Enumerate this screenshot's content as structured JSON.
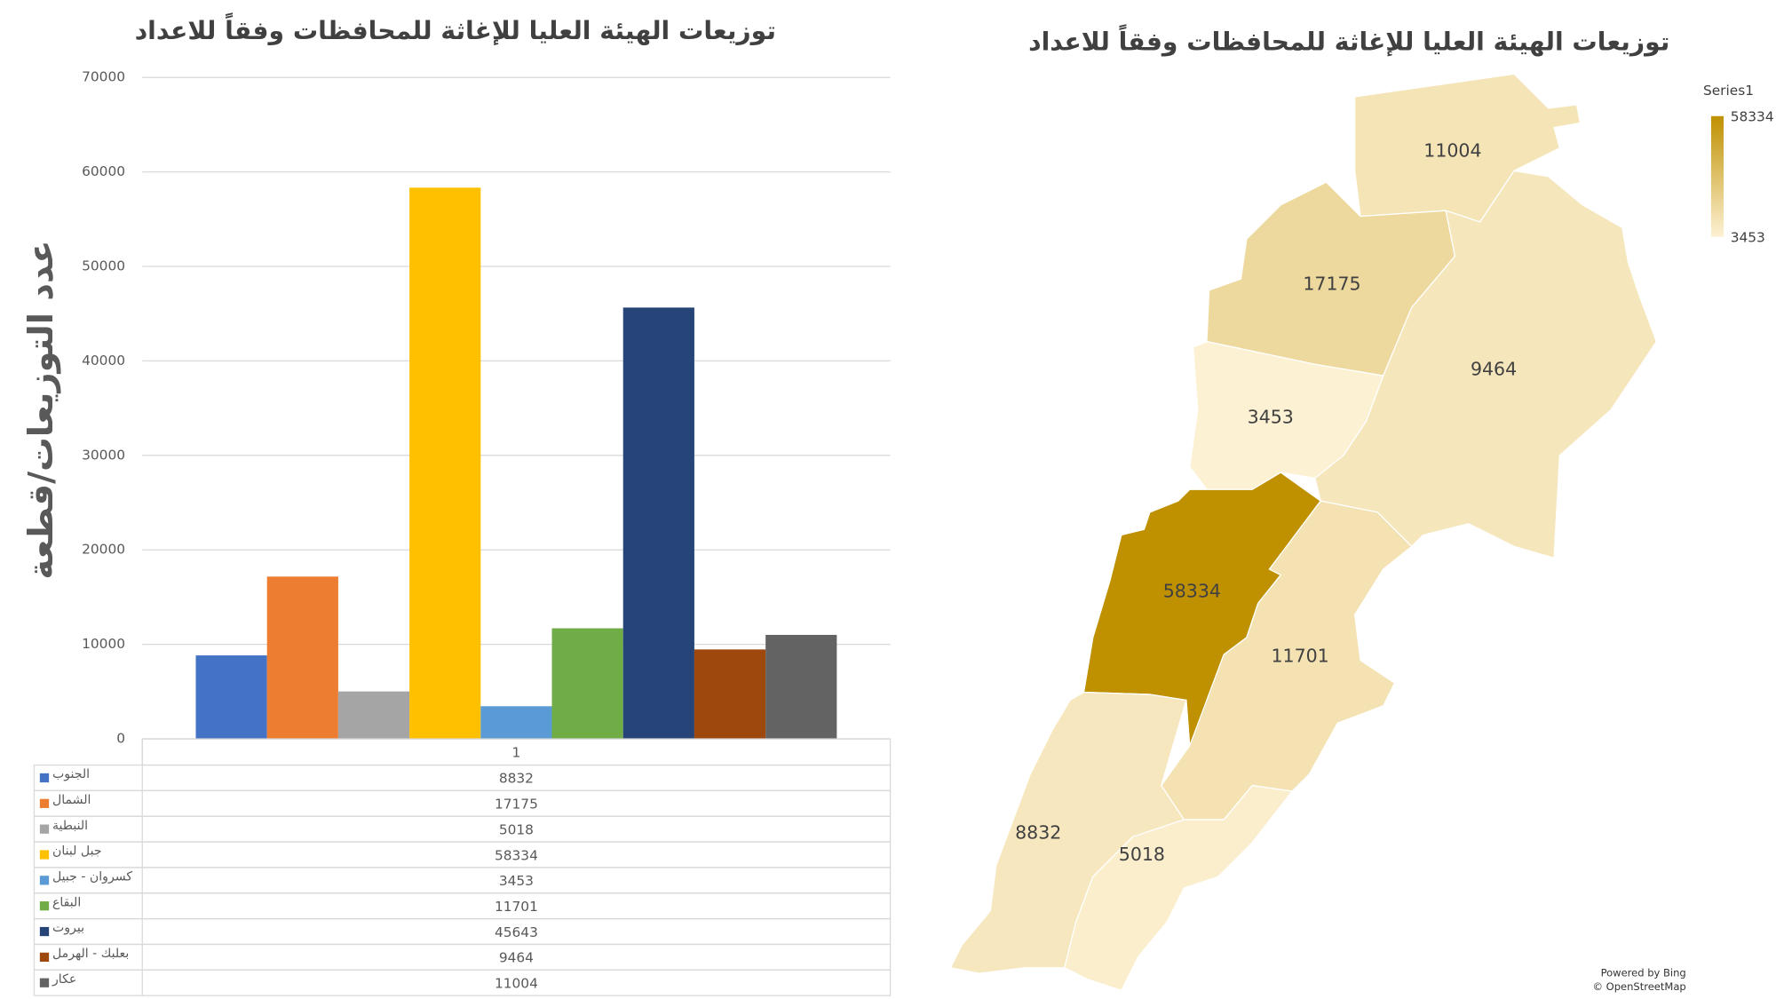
{
  "chart_data": [
    {
      "type": "bar",
      "title": "توزيعات الهيئة العليا للإغاثة للمحافظات وفقاً للاعداد",
      "y_label": "عدد التوزيعات/قطعة",
      "categories": [
        "1"
      ],
      "series": [
        {
          "name": "الجنوب",
          "color": "#4472c4",
          "values": [
            8832
          ]
        },
        {
          "name": "الشمال",
          "color": "#ed7d31",
          "values": [
            17175
          ]
        },
        {
          "name": "النبطية",
          "color": "#a5a5a5",
          "values": [
            5018
          ]
        },
        {
          "name": "جبل لبنان",
          "color": "#ffc000",
          "values": [
            58334
          ]
        },
        {
          "name": "كسروان - جبيل",
          "color": "#5b9bd5",
          "values": [
            3453
          ]
        },
        {
          "name": "البقاع",
          "color": "#70ad47",
          "values": [
            11701
          ]
        },
        {
          "name": "بيروت",
          "color": "#264478",
          "values": [
            45643
          ]
        },
        {
          "name": "بعلبك - الهرمل",
          "color": "#9e480e",
          "values": [
            9464
          ]
        },
        {
          "name": "عكار",
          "color": "#636363",
          "values": [
            11004
          ]
        }
      ],
      "ylim": [
        0,
        70000
      ],
      "yticks": [
        0,
        10000,
        20000,
        30000,
        40000,
        50000,
        60000,
        70000
      ],
      "grid": true,
      "data_table": true
    },
    {
      "type": "map",
      "title": "توزيعات الهيئة العليا للإغاثة للمحافظات وفقاً للاعداد",
      "values": [
        11004,
        17175,
        9464,
        3453,
        58334,
        11701,
        8832,
        5018
      ],
      "legend_title": "Series1",
      "clim": [
        3453,
        58334
      ],
      "color_scale": [
        "#fdf1d3",
        "#bf9000"
      ],
      "attribution": [
        "Powered by Bing",
        "© OpenStreetMap"
      ]
    }
  ]
}
